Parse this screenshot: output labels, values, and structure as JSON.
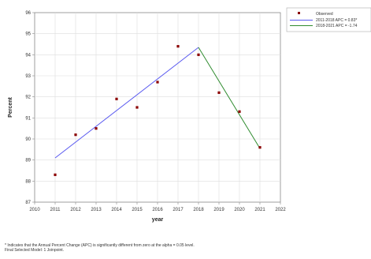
{
  "chart_data": {
    "type": "line",
    "title": "",
    "xlabel": "year",
    "ylabel": "Percent",
    "xlim": [
      2010,
      2022
    ],
    "ylim": [
      87,
      96
    ],
    "x_ticks": [
      "2010",
      "2011",
      "2012",
      "2013",
      "2014",
      "2015",
      "2016",
      "2017",
      "2018",
      "2019",
      "2020",
      "2021",
      "2022"
    ],
    "y_ticks": [
      "87",
      "88",
      "89",
      "90",
      "91",
      "92",
      "93",
      "94",
      "95",
      "96"
    ],
    "grid": true,
    "legend_position": "top-right, outside plot",
    "series": [
      {
        "name": "Observed",
        "kind": "scatter",
        "color": "#8b0000",
        "x": [
          2011,
          2012,
          2013,
          2014,
          2015,
          2016,
          2017,
          2018,
          2019,
          2020,
          2021
        ],
        "y": [
          88.3,
          90.2,
          90.5,
          91.9,
          91.5,
          92.7,
          94.4,
          94.0,
          92.2,
          91.3,
          89.6
        ]
      },
      {
        "name": "2011-2018 APC = 0.83*",
        "kind": "line",
        "color": "#5a5af0",
        "x": [
          2011,
          2018
        ],
        "y": [
          89.1,
          94.35
        ]
      },
      {
        "name": "2018-2021 APC = -1.74",
        "kind": "line",
        "color": "#2e8b2e",
        "x": [
          2018,
          2021
        ],
        "y": [
          94.35,
          89.55
        ]
      }
    ]
  },
  "footnotes": {
    "line1": "* Indicates that the Annual Percent Change (APC) is significantly different from zero at the alpha = 0.05 level.",
    "line2": "Final Selected Model: 1 Joinpoint."
  }
}
